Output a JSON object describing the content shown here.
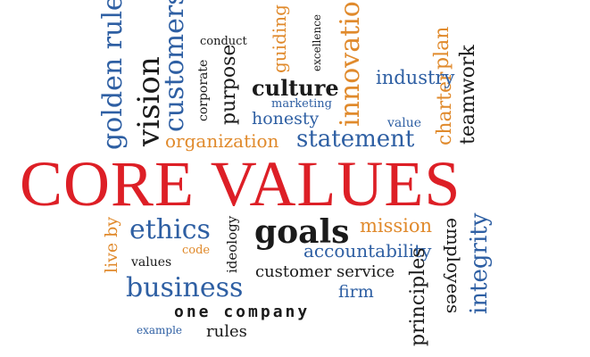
{
  "colors": {
    "red": "#dd1f26",
    "blue": "#2e5fa3",
    "orange": "#e08a2c",
    "black": "#1a1a1a",
    "gray": "#4a4a4a"
  },
  "headline": "CORE VALUES",
  "words": {
    "golden_rule": "golden rule",
    "vision": "vision",
    "customers": "customers",
    "conduct": "conduct",
    "corporate": "corporate",
    "purpose": "purpose",
    "guiding": "guiding",
    "excellence": "excellence",
    "innovation": "innovation",
    "plan": "plan",
    "teamwork": "teamwork",
    "industry": "industry",
    "culture": "culture",
    "marketing": "marketing",
    "honesty": "honesty",
    "value": "value",
    "charter": "charter",
    "organization": "organization",
    "statement": "statement",
    "live_by": "live by",
    "ethics": "ethics",
    "code": "code",
    "values": "values",
    "ideology": "ideology",
    "goals": "goals",
    "mission": "mission",
    "accountability": "accountability",
    "employees": "employees",
    "integrity": "integrity",
    "customer_service": "customer service",
    "business": "business",
    "firm": "firm",
    "principles": "principles",
    "one_company": "one company",
    "example": "example",
    "rules": "rules"
  }
}
